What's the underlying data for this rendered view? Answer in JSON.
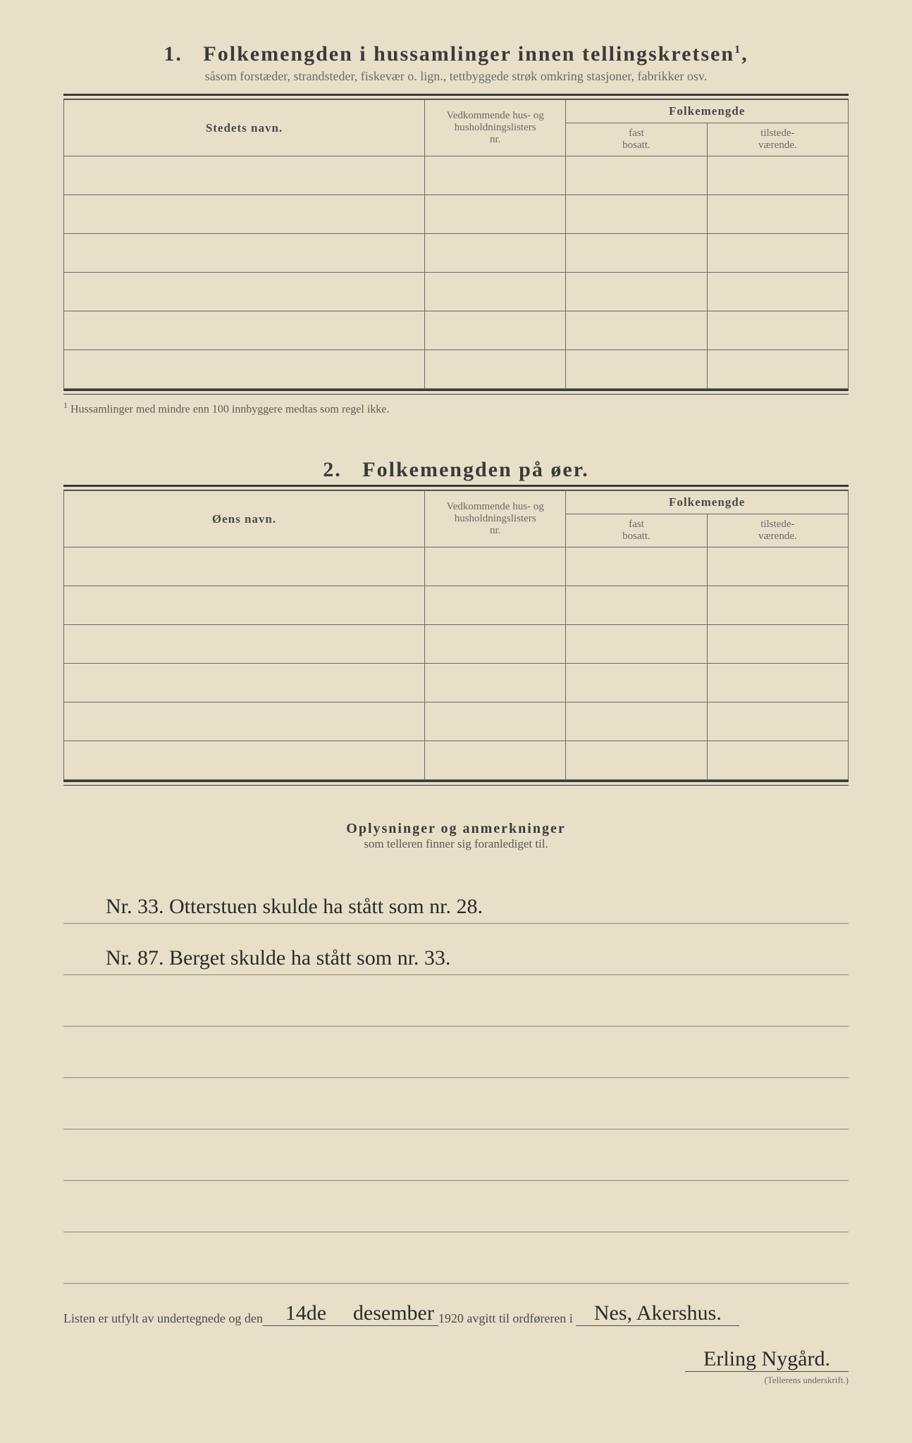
{
  "section1": {
    "number": "1.",
    "title": "Folkemengden i hussamlinger innen tellingskretsen",
    "title_sup": "1",
    "subtitle": "såsom forstæder, strandsteder, fiskevær o. lign., tettbyggede strøk omkring stasjoner, fabrikker osv.",
    "col_name": "Stedets navn.",
    "col_ref_l1": "Vedkommende hus- og",
    "col_ref_l2": "husholdningslisters",
    "col_ref_l3": "nr.",
    "col_folk": "Folkemengde",
    "col_fast_l1": "fast",
    "col_fast_l2": "bosatt.",
    "col_til_l1": "tilstede-",
    "col_til_l2": "værende.",
    "row_count": 6,
    "footnote_marker": "1",
    "footnote": "Hussamlinger med mindre enn 100 innbyggere medtas som regel ikke."
  },
  "section2": {
    "number": "2.",
    "title": "Folkemengden på øer.",
    "col_name": "Øens navn.",
    "col_ref_l1": "Vedkommende hus- og",
    "col_ref_l2": "husholdningslisters",
    "col_ref_l3": "nr.",
    "col_folk": "Folkemengde",
    "col_fast_l1": "fast",
    "col_fast_l2": "bosatt.",
    "col_til_l1": "tilstede-",
    "col_til_l2": "værende.",
    "row_count": 6
  },
  "notes": {
    "title": "Oplysninger og anmerkninger",
    "subtitle": "som telleren finner sig foranlediget til.",
    "lines": [
      "Nr. 33.   Otterstuen skulde ha stått som nr. 28.",
      "Nr. 87.   Berget skulde ha stått som nr. 33.",
      "",
      "",
      "",
      "",
      "",
      ""
    ]
  },
  "signature": {
    "prefix": "Listen er utfylt av undertegnede og den",
    "day": "14de",
    "month": "desember",
    "year_suffix": "1920",
    "mid": "avgitt til ordføreren i",
    "place": "Nes, Akershus.",
    "signer": "Erling Nygård.",
    "label": "(Tellerens underskrift.)"
  },
  "colors": {
    "paper": "#e8dfc8",
    "ink": "#3a3a3a",
    "faint": "#6a6a6a",
    "handwriting": "#2a2a2a"
  }
}
